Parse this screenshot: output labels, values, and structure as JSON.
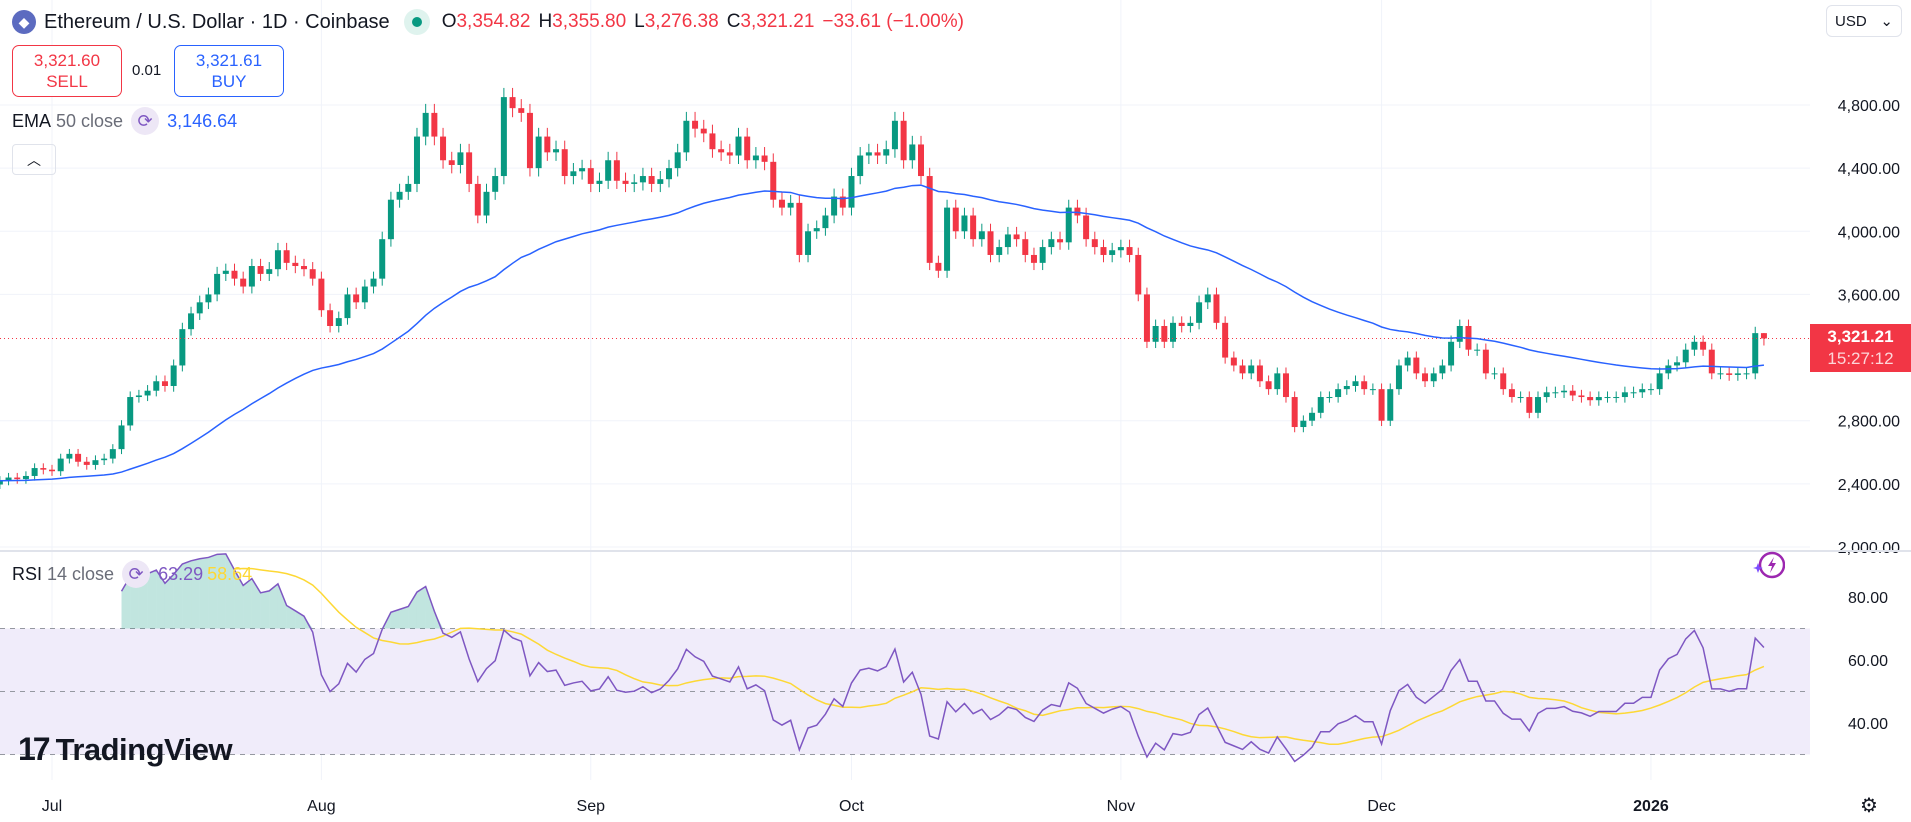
{
  "header": {
    "symbol_title": "Ethereum / U.S. Dollar · 1D · Coinbase",
    "open_label": "O",
    "open": "3,354.82",
    "high_label": "H",
    "high": "3,355.80",
    "low_label": "L",
    "low": "3,276.38",
    "close_label": "C",
    "close": "3,321.21",
    "change": "−33.61 (−1.00%)"
  },
  "trade": {
    "sell_price": "3,321.60",
    "sell_label": "SELL",
    "spread": "0.01",
    "buy_price": "3,321.61",
    "buy_label": "BUY"
  },
  "ema_legend": {
    "name": "EMA",
    "params": "50 close",
    "value": "3,146.64"
  },
  "rsi_legend": {
    "name": "RSI",
    "params": "14 close",
    "value": "63.29",
    "ma_value": "58.64"
  },
  "currency": "USD",
  "last_price_label": {
    "price": "3,321.21",
    "countdown": "15:27:12"
  },
  "logo_text": "TradingView",
  "colors": {
    "up": "#089981",
    "down": "#f23645",
    "ema": "#2962ff",
    "rsi": "#7e57c2",
    "rsi_ma": "#fdd835",
    "rsi_band": "#f0ecfa"
  },
  "price_axis": {
    "ticks": [
      4800,
      4400,
      4000,
      3600,
      2800,
      2400,
      2000
    ],
    "tick_labels": [
      "4,800.00",
      "4,400.00",
      "4,000.00",
      "3,600.00",
      "2,800.00",
      "2,400.00",
      "2,000.00"
    ],
    "range": [
      2000,
      4800
    ]
  },
  "rsi_axis": {
    "ticks": [
      80,
      60,
      40
    ],
    "tick_labels": [
      "80.00",
      "60.00",
      "40.00"
    ],
    "bands": [
      70,
      50,
      30
    ]
  },
  "time_axis": [
    {
      "label": "Jul",
      "date": "2025-07-01"
    },
    {
      "label": "Aug",
      "date": "2025-08-01"
    },
    {
      "label": "Sep",
      "date": "2025-09-01"
    },
    {
      "label": "Oct",
      "date": "2025-10-01"
    },
    {
      "label": "Nov",
      "date": "2025-11-01"
    },
    {
      "label": "Dec",
      "date": "2025-12-01"
    },
    {
      "label": "2026",
      "date": "2026-01-01",
      "bold": true
    }
  ],
  "chart_data": {
    "type": "candlestick",
    "interval": "1D",
    "start": "2025-06-25",
    "close": [
      2420,
      2440,
      2430,
      2450,
      2500,
      2490,
      2480,
      2560,
      2590,
      2540,
      2520,
      2550,
      2560,
      2620,
      2770,
      2950,
      2960,
      2990,
      3050,
      3020,
      3150,
      3380,
      3480,
      3550,
      3600,
      3730,
      3750,
      3700,
      3650,
      3780,
      3730,
      3760,
      3880,
      3800,
      3780,
      3760,
      3700,
      3500,
      3400,
      3450,
      3600,
      3550,
      3650,
      3700,
      3950,
      4200,
      4250,
      4300,
      4600,
      4750,
      4600,
      4450,
      4420,
      4500,
      4300,
      4100,
      4250,
      4350,
      4850,
      4780,
      4750,
      4400,
      4600,
      4500,
      4520,
      4350,
      4380,
      4400,
      4300,
      4320,
      4450,
      4320,
      4300,
      4310,
      4350,
      4300,
      4330,
      4400,
      4500,
      4700,
      4650,
      4620,
      4520,
      4500,
      4480,
      4600,
      4450,
      4480,
      4440,
      4200,
      4150,
      4180,
      3850,
      4000,
      4020,
      4100,
      4220,
      4150,
      4350,
      4480,
      4500,
      4480,
      4520,
      4700,
      4450,
      4550,
      4350,
      3800,
      3750,
      4150,
      4000,
      4100,
      3950,
      4000,
      3850,
      3900,
      3980,
      3950,
      3850,
      3800,
      3900,
      3950,
      3930,
      4150,
      4100,
      3950,
      3900,
      3850,
      3880,
      3900,
      3850,
      3600,
      3300,
      3400,
      3300,
      3420,
      3400,
      3420,
      3550,
      3600,
      3420,
      3200,
      3150,
      3100,
      3150,
      3050,
      3000,
      3100,
      2950,
      2760,
      2800,
      2850,
      2950,
      2950,
      3000,
      3020,
      3050,
      3000,
      3000,
      2800,
      3000,
      3150,
      3200,
      3100,
      3050,
      3100,
      3150,
      3300,
      3400,
      3250,
      3250,
      3100,
      3100,
      3000,
      2950,
      2950,
      2850,
      2950,
      2980,
      2980,
      2990,
      2960,
      2950,
      2930,
      2950,
      2950,
      2950,
      2980,
      2980,
      3000,
      3000,
      3100,
      3150,
      3170,
      3250,
      3300,
      3250,
      3100,
      3100,
      3090,
      3100,
      3100,
      3354.82,
      3321.21
    ],
    "last_candle": {
      "open": 3354.82,
      "high": 3355.8,
      "low": 3276.38,
      "close": 3321.21
    },
    "indicators": [
      "EMA 50",
      "RSI 14 with MA 14"
    ],
    "grid": true
  }
}
